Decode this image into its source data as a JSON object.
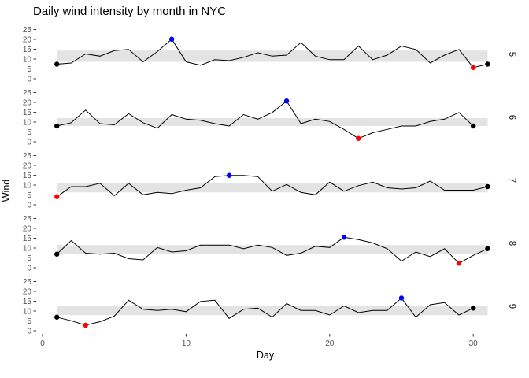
{
  "chart_data": {
    "type": "line",
    "title": "Daily wind intensity by month in NYC",
    "xlabel": "Day",
    "ylabel": "Wind",
    "x_ticks": [
      0,
      10,
      20,
      30
    ],
    "y_ticks": [
      25,
      20,
      15,
      10,
      5,
      0
    ],
    "xlim": [
      0,
      31
    ],
    "ylim": [
      0,
      25
    ],
    "grid": false,
    "legend": "none",
    "facet_strip_side": "right",
    "colors": {
      "band": "#e3e3e3",
      "line": "#000000",
      "max_point": "#0000ff",
      "min_point": "#ff0000",
      "endpoint": "#000000",
      "tick_label": "#4d4d4d",
      "tick_mark": "#333333",
      "strip_label": "#1a1a1a"
    },
    "facets": [
      {
        "label": "5",
        "band": [
          8.6,
          14.3
        ],
        "values": [
          7.4,
          8.0,
          12.6,
          11.5,
          14.3,
          14.9,
          8.6,
          13.8,
          20.1,
          8.6,
          6.9,
          9.7,
          9.2,
          10.9,
          13.2,
          11.5,
          12.0,
          18.4,
          11.5,
          9.7,
          9.7,
          16.6,
          9.7,
          12.0,
          16.6,
          14.9,
          8.0,
          12.0,
          14.9,
          5.7,
          7.4
        ],
        "highlights": [
          {
            "role": "first",
            "day": 1,
            "color": "#000000"
          },
          {
            "role": "last",
            "day": 31,
            "color": "#000000"
          },
          {
            "role": "max",
            "day": 9,
            "color": "#0000ff"
          },
          {
            "role": "min",
            "day": 30,
            "color": "#ff0000"
          }
        ]
      },
      {
        "label": "6",
        "band": [
          8.0,
          12.0
        ],
        "values": [
          8.0,
          9.7,
          16.1,
          9.2,
          8.6,
          14.3,
          9.7,
          6.9,
          13.8,
          11.5,
          10.9,
          9.2,
          8.0,
          13.8,
          11.5,
          14.9,
          20.7,
          9.2,
          11.5,
          10.3,
          6.3,
          1.7,
          4.6,
          6.3,
          8.0,
          8.0,
          10.3,
          11.5,
          14.9,
          8.0
        ],
        "highlights": [
          {
            "role": "first",
            "day": 1,
            "color": "#000000"
          },
          {
            "role": "last",
            "day": 30,
            "color": "#000000"
          },
          {
            "role": "max",
            "day": 17,
            "color": "#0000ff"
          },
          {
            "role": "min",
            "day": 22,
            "color": "#ff0000"
          }
        ]
      },
      {
        "label": "7",
        "band": [
          6.3,
          10.9
        ],
        "values": [
          4.1,
          9.2,
          9.2,
          10.9,
          4.6,
          10.9,
          5.1,
          6.3,
          5.7,
          7.4,
          8.6,
          14.3,
          14.9,
          14.9,
          14.3,
          6.9,
          10.3,
          6.3,
          5.1,
          11.5,
          6.9,
          9.7,
          11.5,
          8.6,
          8.0,
          8.6,
          12.0,
          7.4,
          7.4,
          7.4,
          9.2
        ],
        "highlights": [
          {
            "role": "last",
            "day": 31,
            "color": "#000000"
          },
          {
            "role": "max",
            "day": 13,
            "color": "#0000ff"
          },
          {
            "role": "min",
            "day": 1,
            "color": "#ff0000"
          }
        ]
      },
      {
        "label": "8",
        "band": [
          6.9,
          11.5
        ],
        "values": [
          6.9,
          13.8,
          7.4,
          6.9,
          7.4,
          4.6,
          4.0,
          10.3,
          8.0,
          8.6,
          11.5,
          11.5,
          11.5,
          9.7,
          11.5,
          10.3,
          6.3,
          7.4,
          10.9,
          10.3,
          15.5,
          14.3,
          12.6,
          9.7,
          3.4,
          8.0,
          5.7,
          9.7,
          2.3,
          6.3,
          9.7
        ],
        "highlights": [
          {
            "role": "first",
            "day": 1,
            "color": "#000000"
          },
          {
            "role": "last",
            "day": 31,
            "color": "#000000"
          },
          {
            "role": "max",
            "day": 21,
            "color": "#0000ff"
          },
          {
            "role": "min",
            "day": 29,
            "color": "#ff0000"
          }
        ]
      },
      {
        "label": "9",
        "band": [
          7.9,
          12.6
        ],
        "values": [
          6.9,
          5.1,
          2.8,
          4.6,
          7.4,
          15.5,
          10.9,
          10.3,
          10.9,
          9.7,
          14.9,
          15.5,
          6.3,
          10.9,
          11.5,
          6.9,
          13.8,
          10.3,
          10.3,
          8.0,
          12.6,
          9.2,
          10.3,
          10.3,
          16.6,
          6.9,
          13.2,
          14.3,
          8.0,
          11.5
        ],
        "highlights": [
          {
            "role": "first",
            "day": 1,
            "color": "#000000"
          },
          {
            "role": "last",
            "day": 30,
            "color": "#000000"
          },
          {
            "role": "max",
            "day": 25,
            "color": "#0000ff"
          },
          {
            "role": "min",
            "day": 3,
            "color": "#ff0000"
          }
        ]
      }
    ]
  }
}
